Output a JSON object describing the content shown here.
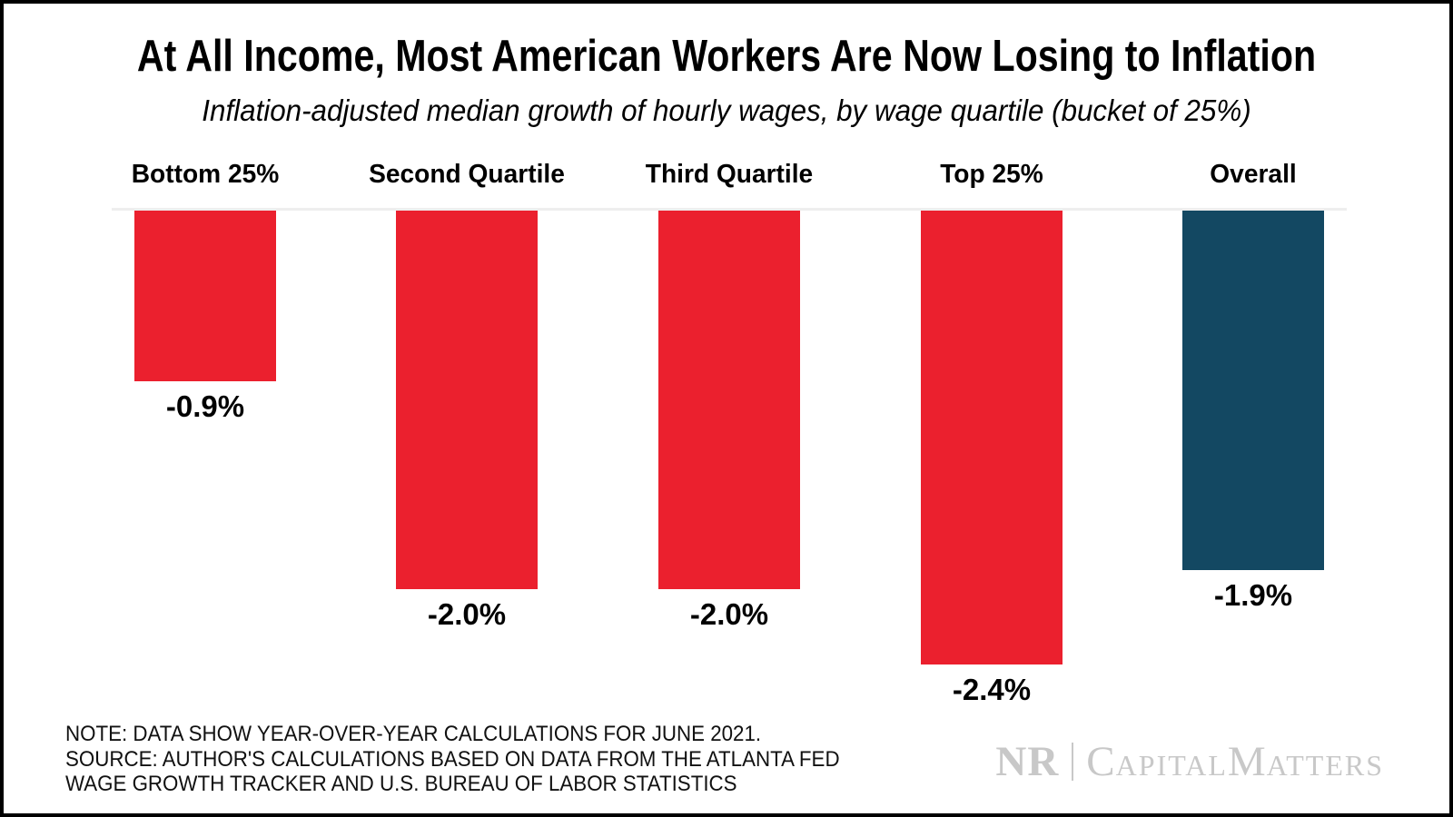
{
  "title": "At All Income, Most American Workers Are Now Losing to Inflation",
  "subtitle": "Inflation-adjusted median growth of hourly wages, by wage quartile (bucket of 25%)",
  "chart_data": {
    "type": "bar",
    "categories": [
      "Bottom 25%",
      "Second Quartile",
      "Third Quartile",
      "Top 25%",
      "Overall"
    ],
    "values": [
      -0.9,
      -2.0,
      -2.0,
      -2.4,
      -1.9
    ],
    "value_labels": [
      "-0.9%",
      "-2.0%",
      "-2.0%",
      "-2.4%",
      "-1.9%"
    ],
    "bar_colors": [
      "#eb202e",
      "#eb202e",
      "#eb202e",
      "#eb202e",
      "#134862"
    ],
    "title": "At All Income, Most American Workers Are Now Losing to Inflation",
    "subtitle": "Inflation-adjusted median growth of hourly wages, by wage quartile (bucket of 25%)",
    "xlabel": "",
    "ylabel": "",
    "ylim": [
      -2.6,
      0
    ],
    "orientation": "vertical-downward-from-zero",
    "axes": "hidden; only a light gray zero baseline is drawn",
    "grid": "off",
    "legend": "none",
    "label_placement": "category names above bars, value labels below bar ends"
  },
  "colors": {
    "bar_red": "#eb202e",
    "bar_blue": "#134862",
    "baseline_gray": "#eeeeee",
    "logo_gray": "#c8c8c8",
    "text_black": "#000000"
  },
  "note": {
    "line1": "NOTE: DATA SHOW YEAR-OVER-YEAR CALCULATIONS FOR JUNE 2021.",
    "line2": "SOURCE: AUTHOR'S CALCULATIONS BASED ON DATA FROM THE ATLANTA FED",
    "line3": "WAGE GROWTH TRACKER AND U.S. BUREAU OF LABOR STATISTICS"
  },
  "logo": {
    "nr": "NR",
    "cap_big": "C",
    "cap_small": "APITAL",
    "mat_big": "M",
    "mat_small": "ATTERS"
  }
}
